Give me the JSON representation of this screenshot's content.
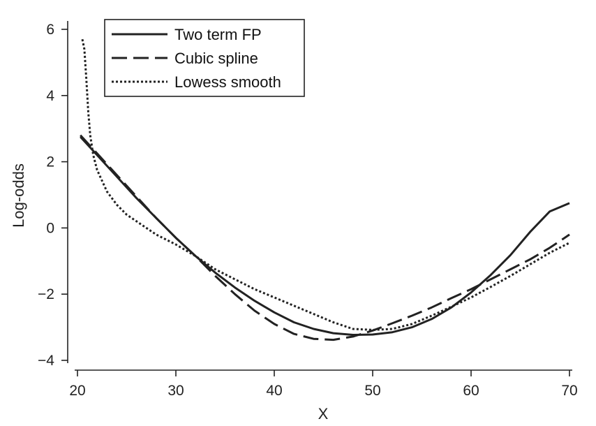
{
  "chart_data": {
    "type": "line",
    "title": "",
    "xlabel": "X",
    "ylabel": "Log-odds",
    "xlim": [
      20,
      70
    ],
    "ylim": [
      -4,
      6
    ],
    "xticks": [
      20,
      30,
      40,
      50,
      60,
      70
    ],
    "yticks": [
      6,
      4,
      2,
      0,
      -2,
      -4
    ],
    "ytick_labels": [
      "6",
      "4",
      "2",
      "0",
      "−2",
      "−4"
    ],
    "xtick_labels": [
      "20",
      "30",
      "40",
      "50",
      "60",
      "70"
    ],
    "grid": false,
    "legend_position": "top-left",
    "series": [
      {
        "name": "Two term FP",
        "style": "solid",
        "x": [
          20.3,
          22,
          24,
          26,
          28,
          30,
          32,
          34,
          36,
          38,
          40,
          42,
          44,
          46,
          48,
          50,
          52,
          54,
          56,
          58,
          60,
          62,
          64,
          66,
          68,
          70
        ],
        "y": [
          2.75,
          2.2,
          1.55,
          0.9,
          0.3,
          -0.3,
          -0.85,
          -1.35,
          -1.8,
          -2.2,
          -2.55,
          -2.85,
          -3.05,
          -3.18,
          -3.23,
          -3.22,
          -3.15,
          -3.0,
          -2.75,
          -2.4,
          -1.95,
          -1.42,
          -0.82,
          -0.12,
          0.5,
          0.75
        ]
      },
      {
        "name": "Cubic spline",
        "style": "dashed",
        "x": [
          20.3,
          22,
          24,
          26,
          28,
          30,
          32,
          34,
          36,
          38,
          40,
          42,
          44,
          46,
          48,
          50,
          52,
          54,
          56,
          58,
          60,
          62,
          64,
          66,
          68,
          70
        ],
        "y": [
          2.8,
          2.25,
          1.6,
          0.95,
          0.3,
          -0.3,
          -0.85,
          -1.45,
          -2.0,
          -2.5,
          -2.9,
          -3.2,
          -3.35,
          -3.38,
          -3.28,
          -3.1,
          -2.88,
          -2.65,
          -2.4,
          -2.12,
          -1.85,
          -1.55,
          -1.25,
          -0.95,
          -0.6,
          -0.2
        ]
      },
      {
        "name": "Lowess smooth",
        "style": "dotted",
        "x": [
          20.5,
          20.7,
          20.9,
          21.1,
          21.3,
          21.6,
          22,
          23,
          24,
          25,
          26,
          28,
          30,
          32,
          34,
          36,
          38,
          40,
          42,
          44,
          46,
          48,
          50,
          52,
          54,
          56,
          58,
          60,
          62,
          64,
          66,
          68,
          70
        ],
        "y": [
          5.7,
          5.4,
          4.5,
          3.5,
          2.8,
          2.2,
          1.75,
          1.1,
          0.7,
          0.4,
          0.2,
          -0.2,
          -0.5,
          -0.85,
          -1.25,
          -1.55,
          -1.85,
          -2.1,
          -2.35,
          -2.6,
          -2.85,
          -3.05,
          -3.08,
          -3.05,
          -2.9,
          -2.65,
          -2.38,
          -2.1,
          -1.78,
          -1.45,
          -1.1,
          -0.75,
          -0.45
        ]
      }
    ]
  }
}
